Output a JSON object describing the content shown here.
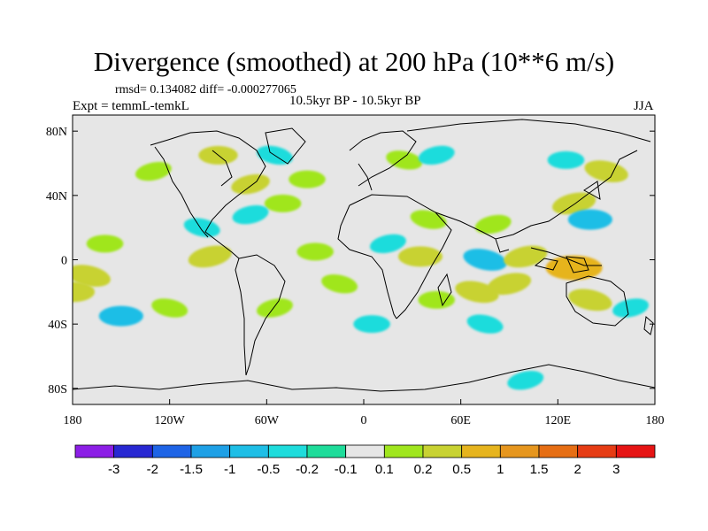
{
  "header": {
    "title": "Divergence (smoothed) at 200 hPa (10**6 m/s)",
    "stats": "rmsd= 0.134082  diff= -0.000277065",
    "experiment": "Expt = temmL-temkL",
    "period": "10.5kyr BP - 10.5kyr BP",
    "season": "JJA"
  },
  "axes": {
    "lat_labels": [
      "80N",
      "40N",
      "0",
      "40S",
      "80S"
    ],
    "lon_labels": [
      "180",
      "120W",
      "60W",
      "0",
      "60E",
      "120E",
      "180"
    ]
  },
  "colorbar": {
    "labels": [
      "-3",
      "-2",
      "-1.5",
      "-1",
      "-0.5",
      "-0.2",
      "-0.1",
      "0.1",
      "0.2",
      "0.5",
      "1",
      "1.5",
      "2",
      "3"
    ],
    "colors": [
      "#8c1ee6",
      "#2828d2",
      "#1e64e6",
      "#1ea0e6",
      "#1ebee6",
      "#1edcdc",
      "#1edc9a",
      "#e6e6e6",
      "#a0e61e",
      "#c8d232",
      "#e6b41e",
      "#e6961e",
      "#e66e14",
      "#e63c14",
      "#e61414"
    ]
  },
  "chart_data": {
    "type": "filled-contour map",
    "title": "Divergence (smoothed) at 200 hPa (10**6 m/s)",
    "units": "10**6 m/s",
    "x_range": [
      -180,
      180
    ],
    "y_range": [
      -90,
      90
    ],
    "contour_levels": [
      -3,
      -2,
      -1.5,
      -1,
      -0.5,
      -0.2,
      -0.1,
      0.1,
      0.2,
      0.5,
      1,
      1.5,
      2,
      3
    ],
    "anomaly_regions": [
      {
        "lon": -130,
        "lat": 55,
        "value": 0.2
      },
      {
        "lon": -90,
        "lat": 65,
        "value": 0.3
      },
      {
        "lon": -55,
        "lat": 65,
        "value": -0.2
      },
      {
        "lon": -70,
        "lat": 47,
        "value": 0.3
      },
      {
        "lon": -35,
        "lat": 50,
        "value": 0.2
      },
      {
        "lon": 25,
        "lat": 62,
        "value": 0.2
      },
      {
        "lon": 45,
        "lat": 65,
        "value": -0.2
      },
      {
        "lon": 125,
        "lat": 62,
        "value": -0.2
      },
      {
        "lon": 150,
        "lat": 55,
        "value": 0.5
      },
      {
        "lon": 130,
        "lat": 35,
        "value": 0.5
      },
      {
        "lon": 140,
        "lat": 25,
        "value": -0.5
      },
      {
        "lon": 40,
        "lat": 25,
        "value": 0.2
      },
      {
        "lon": 80,
        "lat": 22,
        "value": 0.2
      },
      {
        "lon": -50,
        "lat": 35,
        "value": 0.2
      },
      {
        "lon": -100,
        "lat": 20,
        "value": -0.2
      },
      {
        "lon": -70,
        "lat": 28,
        "value": -0.2
      },
      {
        "lon": -160,
        "lat": 10,
        "value": 0.2
      },
      {
        "lon": -170,
        "lat": -10,
        "value": 0.5
      },
      {
        "lon": -95,
        "lat": 2,
        "value": 0.5
      },
      {
        "lon": -30,
        "lat": 5,
        "value": 0.2
      },
      {
        "lon": -15,
        "lat": -15,
        "value": 0.2
      },
      {
        "lon": 15,
        "lat": 10,
        "value": -0.2
      },
      {
        "lon": 35,
        "lat": 2,
        "value": 0.5
      },
      {
        "lon": 75,
        "lat": 0,
        "value": -0.5
      },
      {
        "lon": 100,
        "lat": 2,
        "value": 0.5
      },
      {
        "lon": 130,
        "lat": -5,
        "value": 1.0
      },
      {
        "lon": 70,
        "lat": -20,
        "value": 0.5
      },
      {
        "lon": 90,
        "lat": -15,
        "value": 0.5
      },
      {
        "lon": 45,
        "lat": -25,
        "value": 0.2
      },
      {
        "lon": 140,
        "lat": -25,
        "value": 0.5
      },
      {
        "lon": 165,
        "lat": -30,
        "value": -0.2
      },
      {
        "lon": -150,
        "lat": -35,
        "value": -0.5
      },
      {
        "lon": -120,
        "lat": -30,
        "value": 0.2
      },
      {
        "lon": -55,
        "lat": -30,
        "value": 0.2
      },
      {
        "lon": 5,
        "lat": -40,
        "value": -0.2
      },
      {
        "lon": 75,
        "lat": -40,
        "value": -0.2
      },
      {
        "lon": 100,
        "lat": -75,
        "value": -0.2
      },
      {
        "lon": -180,
        "lat": -20,
        "value": 0.5
      }
    ]
  }
}
